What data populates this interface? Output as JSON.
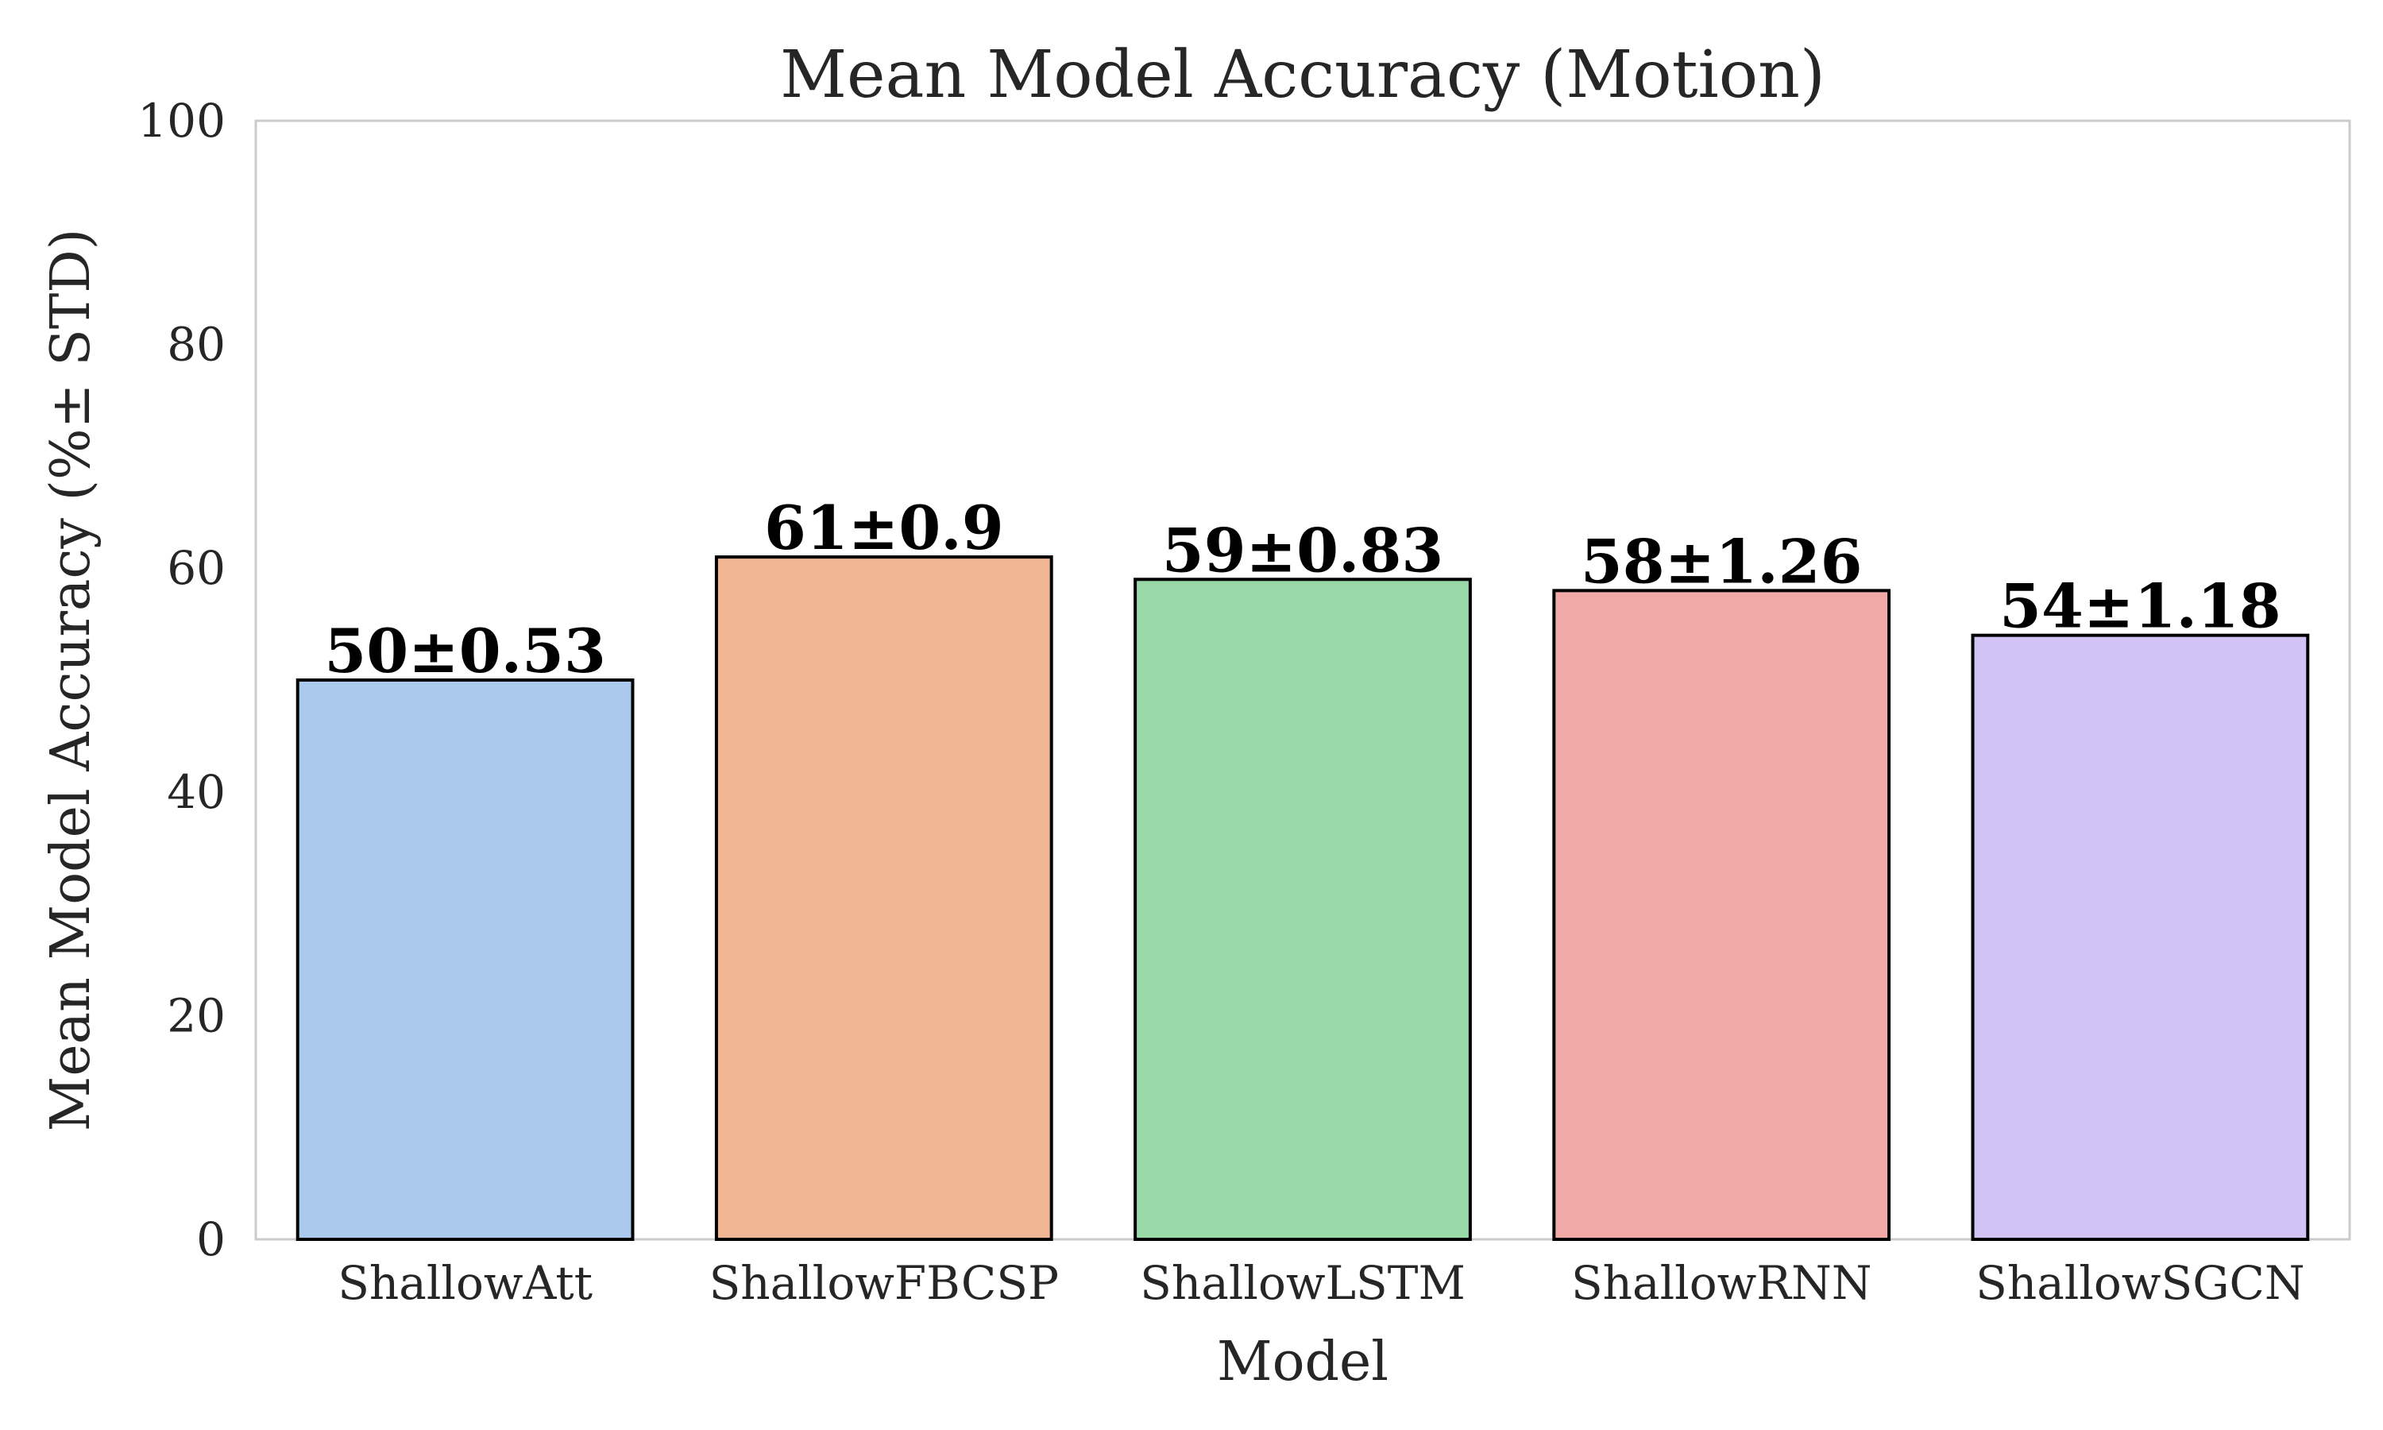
{
  "chart_data": {
    "type": "bar",
    "title": "Mean Model Accuracy (Motion)",
    "xlabel": "Model",
    "ylabel": "Mean Model Accuracy (%± STD)",
    "categories": [
      "ShallowAtt",
      "ShallowFBCSP",
      "ShallowLSTM",
      "ShallowRNN",
      "ShallowSGCN"
    ],
    "values": [
      50,
      61,
      59,
      58,
      54
    ],
    "std": [
      0.53,
      0.9,
      0.83,
      1.26,
      1.18
    ],
    "value_labels": [
      "50±0.53",
      "61±0.9",
      "59±0.83",
      "58±1.26",
      "54±1.18"
    ],
    "colors": [
      "#abc9ed",
      "#f0b693",
      "#98d9a7",
      "#f1aaa8",
      "#d1c4f5"
    ],
    "ylim": [
      0,
      100
    ],
    "yticks": [
      "0",
      "20",
      "40",
      "60",
      "80",
      "100"
    ],
    "grid": false,
    "legend": "none"
  }
}
